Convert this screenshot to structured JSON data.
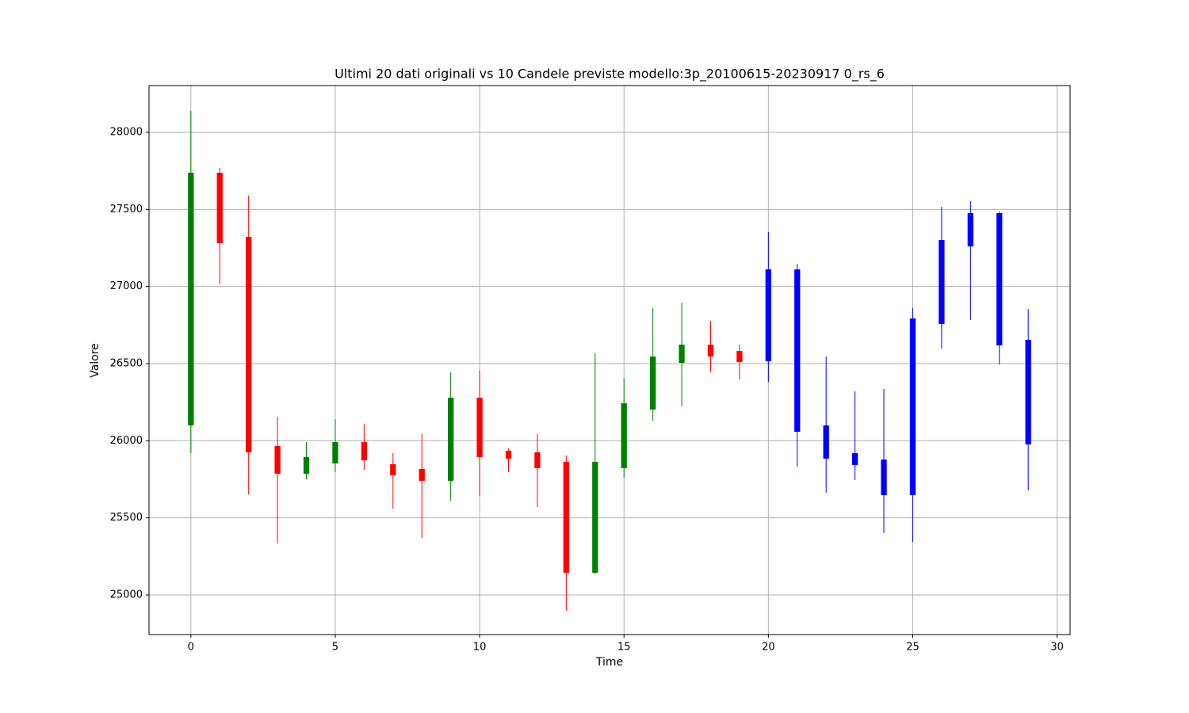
{
  "chart_data": {
    "type": "candlestick",
    "title": "Ultimi 20 dati originali vs 10 Candele previste modello:3p_20100615-20230917 0_rs_6",
    "x_label": "Time",
    "y_label": "Valore",
    "x": [
      0,
      1,
      2,
      3,
      4,
      5,
      6,
      7,
      8,
      9,
      10,
      11,
      12,
      13,
      14,
      15,
      16,
      17,
      18,
      19,
      20,
      21,
      22,
      23,
      24,
      25,
      26,
      27,
      28,
      29
    ],
    "open": [
      26099,
      27738,
      27322,
      25966,
      25786,
      25853,
      25991,
      25848,
      25817,
      25740,
      26279,
      25935,
      25925,
      25863,
      25144,
      25822,
      26202,
      26505,
      26623,
      26582,
      26515,
      27111,
      26099,
      25920,
      25878,
      25647,
      26757,
      27260,
      27476,
      26654
    ],
    "high": [
      28139,
      27769,
      27589,
      26156,
      25991,
      26140,
      26110,
      25920,
      26043,
      26443,
      26454,
      25950,
      26043,
      25904,
      26567,
      26407,
      26860,
      26896,
      26777,
      26623,
      27353,
      27147,
      26546,
      26320,
      26336,
      26860,
      27517,
      27553,
      27486,
      26854
    ],
    "low": [
      25920,
      27014,
      25652,
      25334,
      25750,
      25796,
      25812,
      25560,
      25370,
      25611,
      25642,
      25796,
      25570,
      24897,
      25134,
      25760,
      26130,
      26223,
      26443,
      26397,
      26382,
      25832,
      25663,
      25745,
      25401,
      25344,
      26598,
      26783,
      26495,
      25678
    ],
    "close": [
      27738,
      27281,
      25925,
      25786,
      25894,
      25991,
      25873,
      25776,
      25740,
      26279,
      25894,
      25884,
      25822,
      25144,
      25863,
      26243,
      26546,
      26623,
      26546,
      26510,
      27111,
      26058,
      25884,
      25842,
      25647,
      26793,
      27301,
      27476,
      26618,
      25976
    ],
    "colors": [
      "green",
      "red",
      "red",
      "red",
      "green",
      "green",
      "red",
      "red",
      "red",
      "green",
      "red",
      "red",
      "red",
      "red",
      "green",
      "green",
      "green",
      "green",
      "red",
      "red",
      "blue",
      "blue",
      "blue",
      "blue",
      "blue",
      "blue",
      "blue",
      "blue",
      "blue",
      "blue"
    ],
    "xlim": [
      -1.45,
      30.45
    ],
    "ylim": [
      24743,
      28303
    ],
    "xticks": [
      0,
      5,
      10,
      15,
      20,
      25,
      30
    ],
    "yticks": [
      25000,
      25500,
      26000,
      26500,
      27000,
      27500,
      28000
    ],
    "grid": true
  }
}
